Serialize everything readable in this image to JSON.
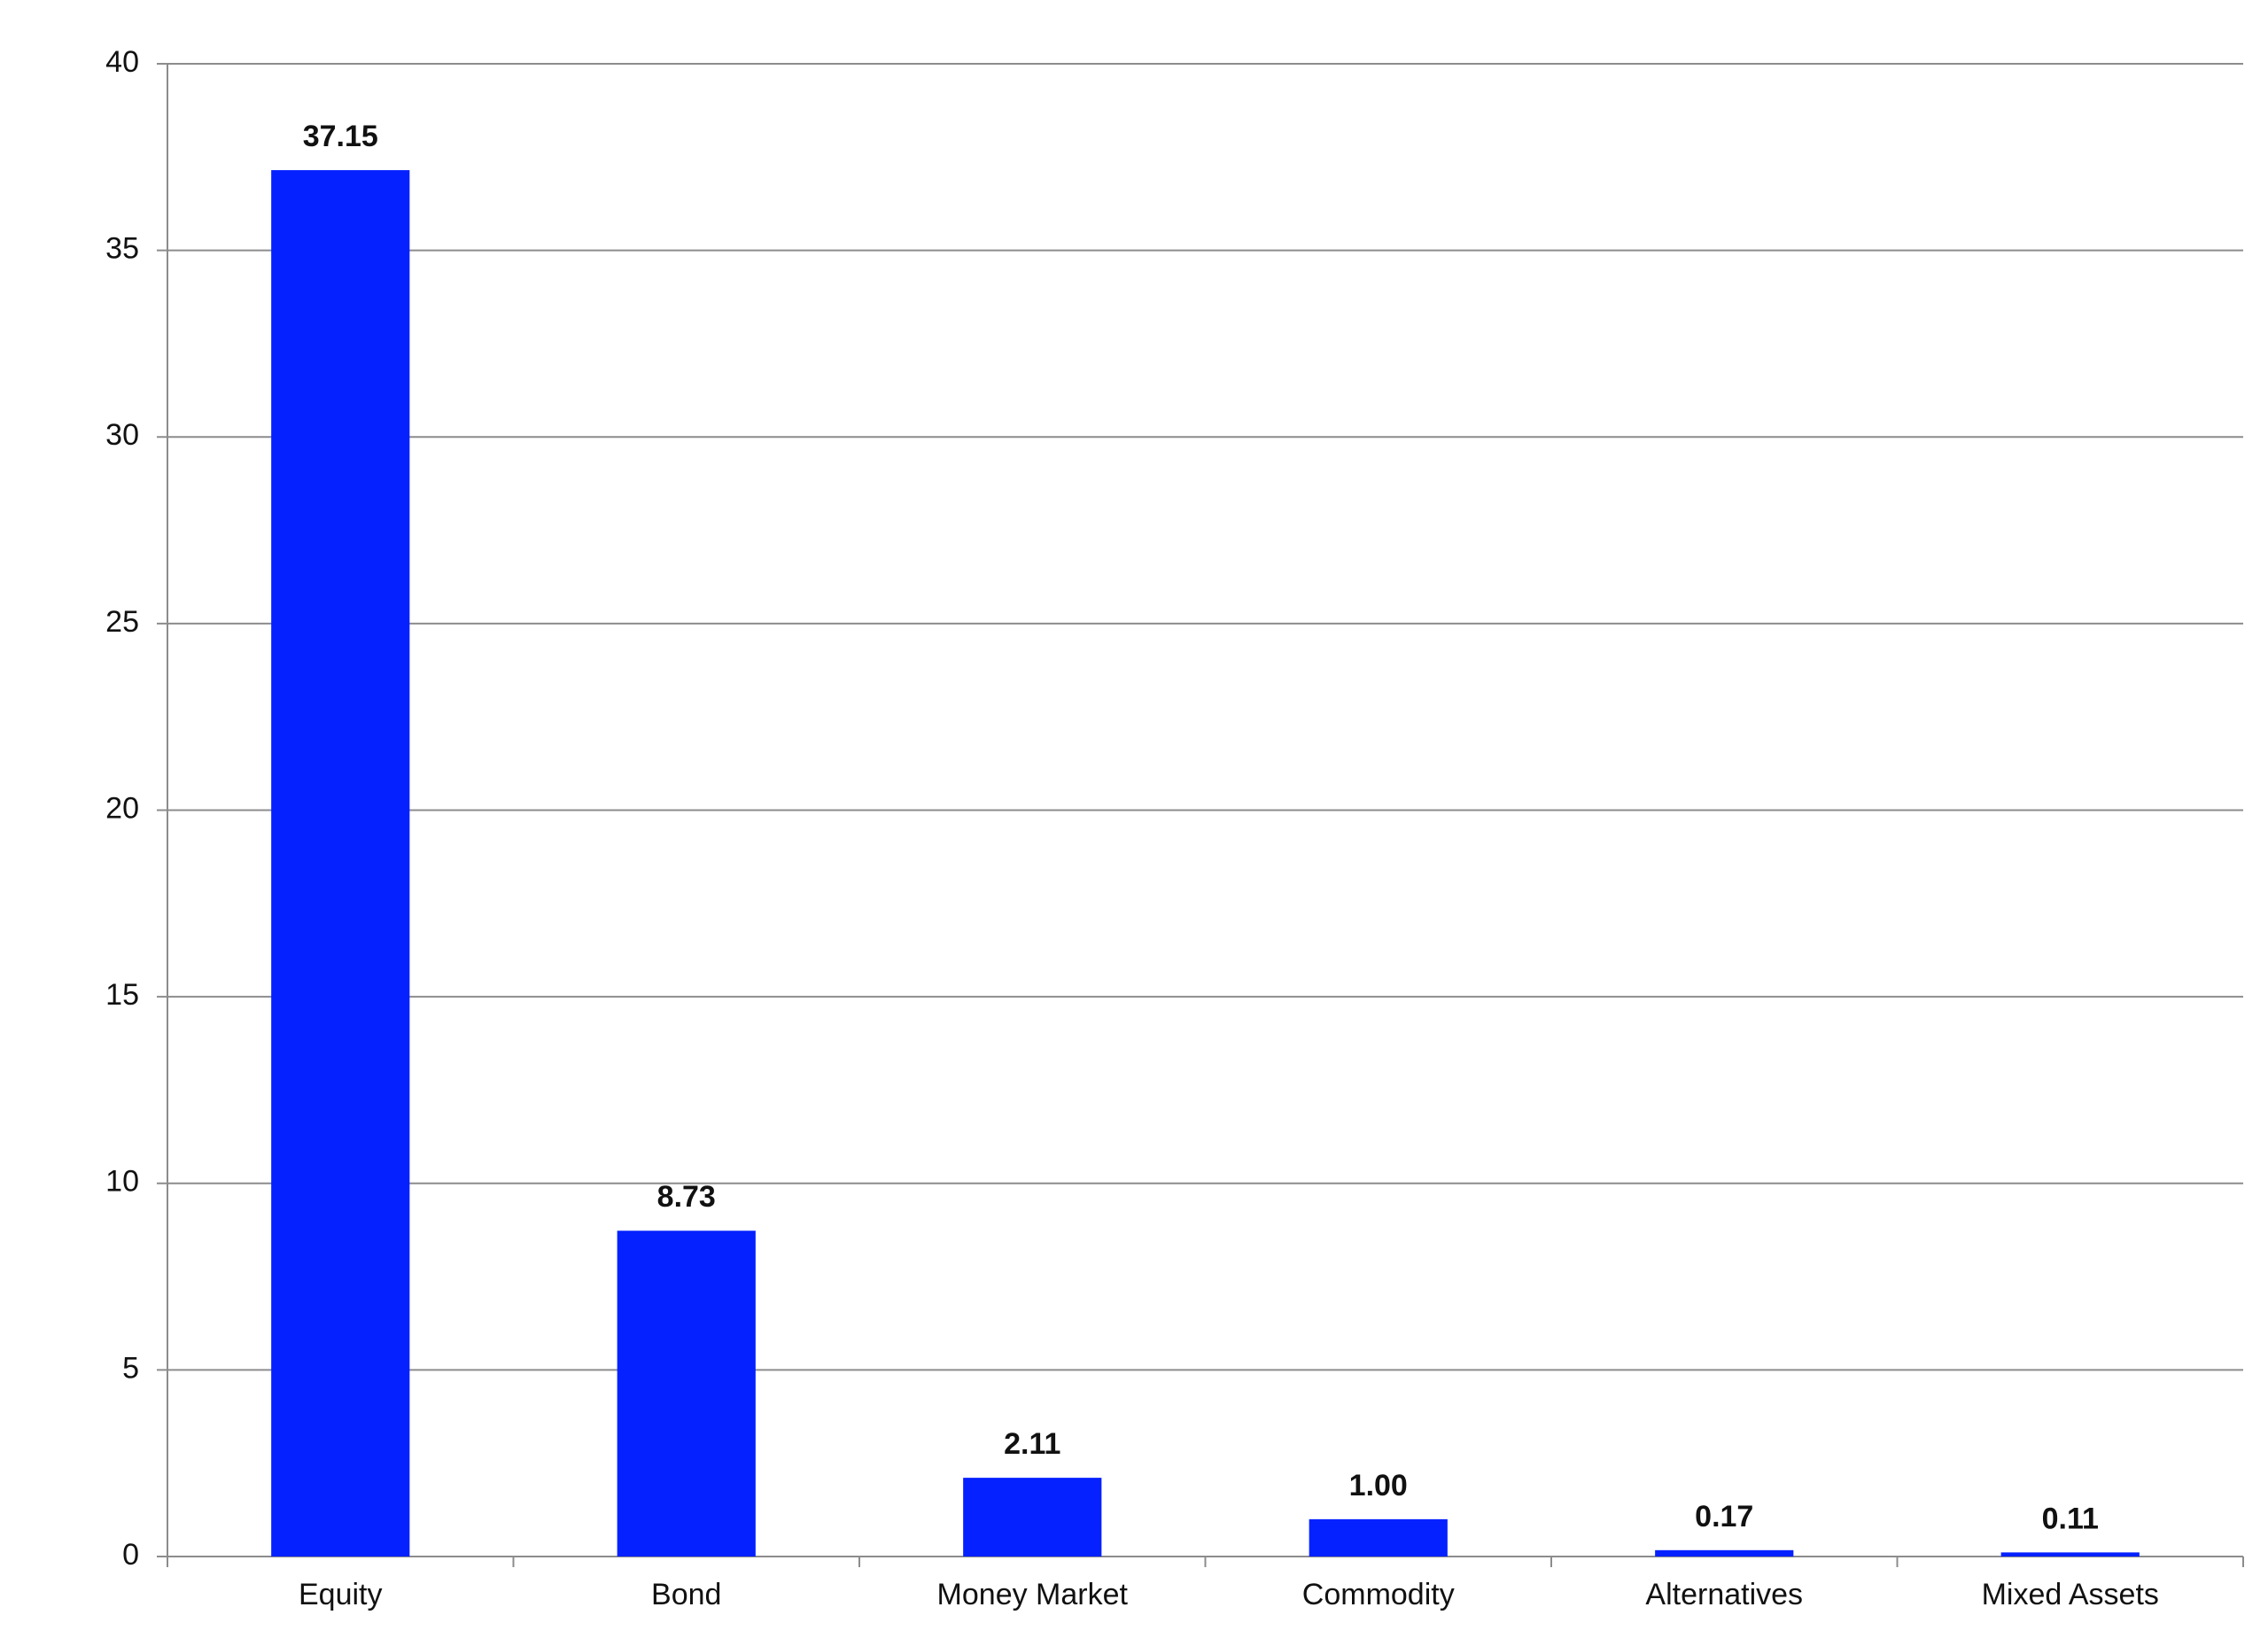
{
  "chart_data": {
    "type": "bar",
    "categories": [
      "Equity",
      "Bond",
      "Money Market",
      "Commodity",
      "Alternatives",
      "Mixed Assets"
    ],
    "values": [
      37.15,
      8.73,
      2.11,
      1,
      0.17,
      0.11
    ],
    "value_labels": [
      "37.15",
      "8.73",
      "2.11",
      "1.00",
      "0.17",
      "0.11"
    ],
    "color": "#0521ff",
    "ylim": [
      0,
      40
    ],
    "yticks": [
      0,
      5,
      10,
      15,
      20,
      25,
      30,
      35,
      40
    ],
    "grid": true
  }
}
